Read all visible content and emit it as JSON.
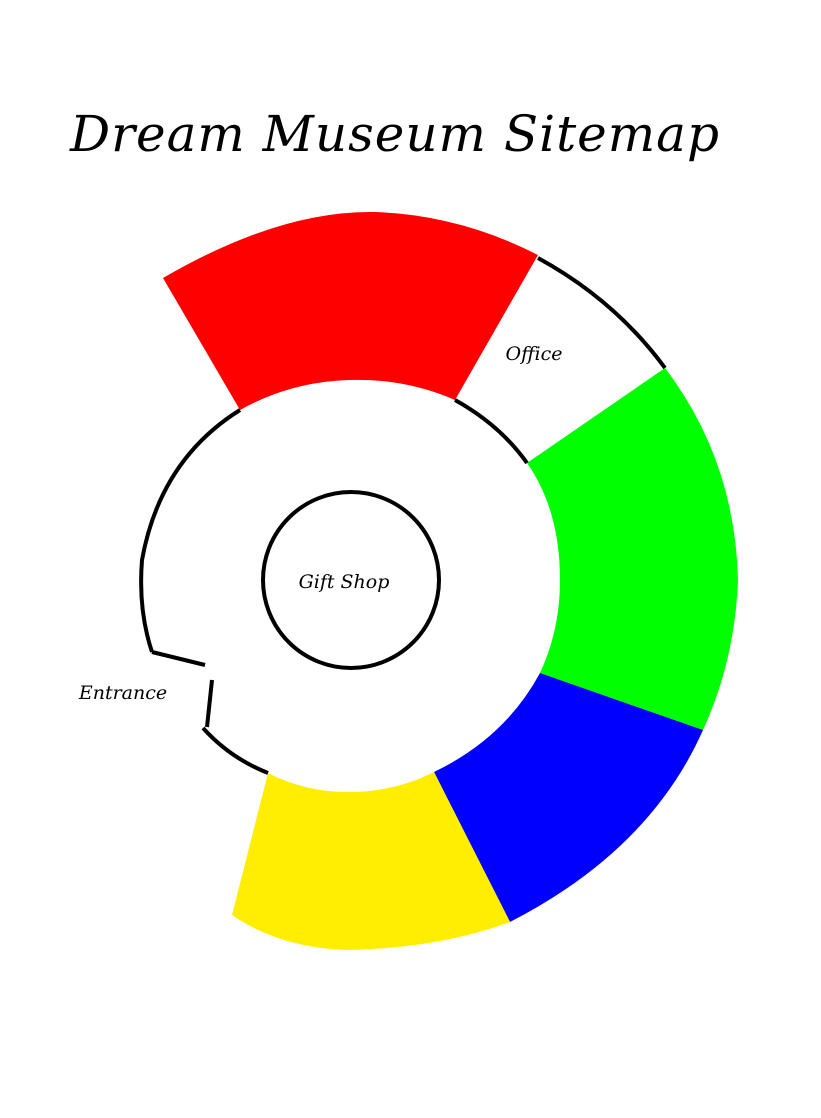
{
  "title": "Dream Museum Sitemap",
  "rooms": {
    "center": "Gift Shop",
    "office": "Office",
    "entrance": "Entrance"
  },
  "colors": {
    "red_wing": "#ff0000",
    "green_wing": "#00ff00",
    "blue_wing": "#0000ff",
    "yellow_wing": "#ffee00",
    "outline": "#000000"
  }
}
